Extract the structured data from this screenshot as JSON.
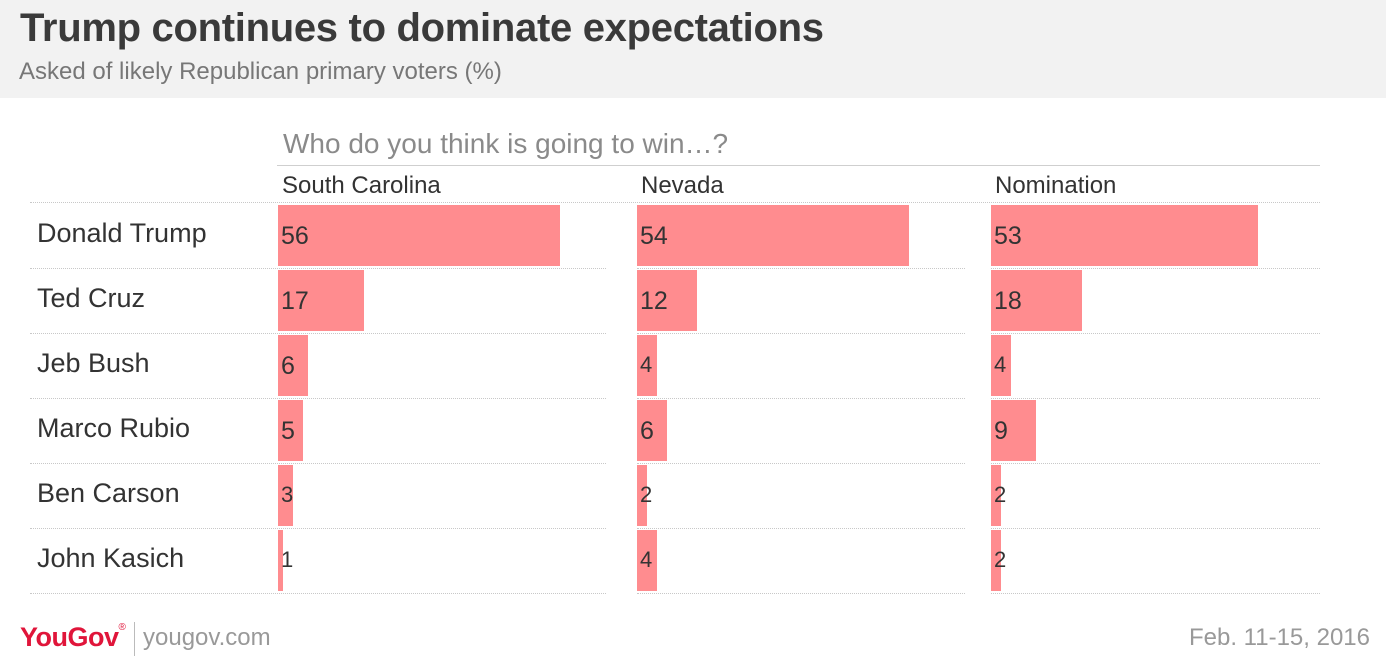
{
  "header": {
    "title": "Trump continues to dominate expectations",
    "subtitle": "Asked of likely Republican primary voters (%)"
  },
  "chart_data": {
    "type": "bar",
    "question": "Who do you think is going to win…?",
    "categories": [
      "Donald Trump",
      "Ted Cruz",
      "Jeb Bush",
      "Marco Rubio",
      "Ben Carson",
      "John Kasich"
    ],
    "series": [
      {
        "name": "South Carolina",
        "values": [
          56,
          17,
          6,
          5,
          3,
          1
        ]
      },
      {
        "name": "Nevada",
        "values": [
          54,
          12,
          4,
          6,
          2,
          4
        ]
      },
      {
        "name": "Nomination",
        "values": [
          53,
          18,
          4,
          9,
          2,
          2
        ]
      }
    ],
    "bar_color": "#ff8c8f",
    "orientation": "horizontal",
    "grid": true
  },
  "footer": {
    "logo_text": "YouGov",
    "logo_mark": "®",
    "site": "yougov.com",
    "date": "Feb. 11-15, 2016"
  }
}
